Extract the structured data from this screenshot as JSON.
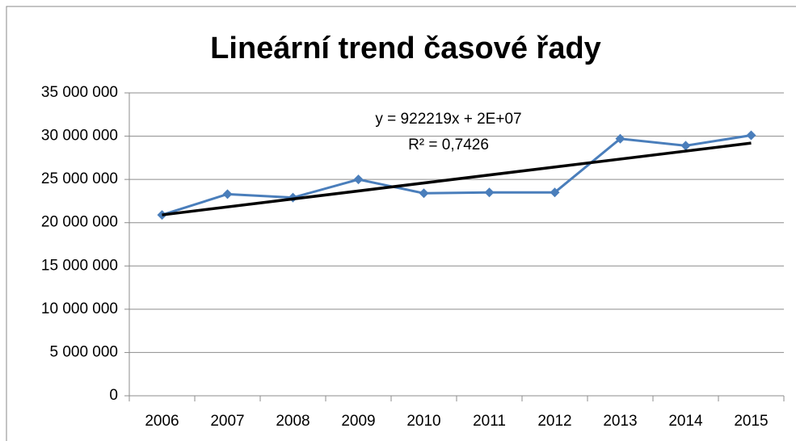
{
  "chart_data": {
    "type": "line",
    "title": "Lineární trend časové řady",
    "categories": [
      "2006",
      "2007",
      "2008",
      "2009",
      "2010",
      "2011",
      "2012",
      "2013",
      "2014",
      "2015"
    ],
    "series": [
      {
        "color": "#4a7ebb",
        "values": [
          20900000,
          23300000,
          22900000,
          25000000,
          23400000,
          23500000,
          23500000,
          29700000,
          28900000,
          30100000
        ]
      }
    ],
    "trendline": {
      "color": "#000000",
      "categories": [
        "2006",
        "2015"
      ],
      "values": [
        20900000,
        29200000
      ]
    },
    "annotations": [
      "y = 922219x + 2E+07",
      "R² = 0,7426"
    ],
    "ylim": [
      0,
      35000000
    ],
    "yticks": [
      0,
      {
        "value": 5000000,
        "label": "5 000 000"
      },
      {
        "value": 10000000,
        "label": "10 000 000"
      },
      {
        "value": 15000000,
        "label": "15 000 000"
      },
      {
        "value": 20000000,
        "label": "20 000 000"
      },
      {
        "value": 25000000,
        "label": "25 000 000"
      },
      {
        "value": 30000000,
        "label": "30 000 000"
      },
      {
        "value": 35000000,
        "label": "35 000 000"
      }
    ],
    "grid": true
  }
}
